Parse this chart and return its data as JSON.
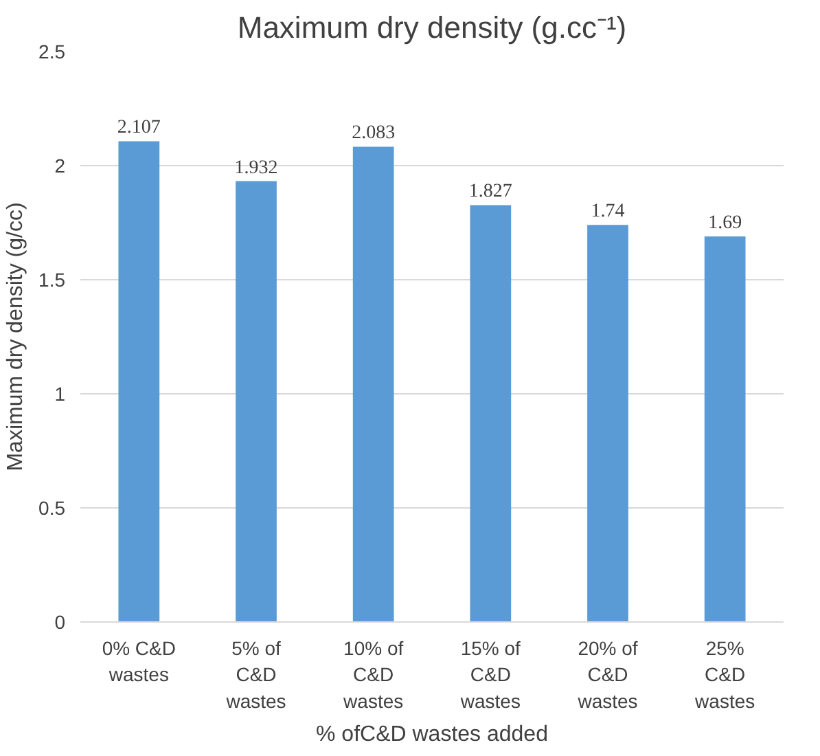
{
  "chart_data": {
    "type": "bar",
    "title": "Maximum dry density (g.cc⁻¹)",
    "xlabel": "% ofC&D wastes added",
    "ylabel": "Maximum dry density (g/cc)",
    "categories": [
      "0% C&D wastes",
      "5% of C&D wastes",
      "10% of C&D wastes",
      "15% of C&D wastes",
      "20% of C&D wastes",
      "25% C&D wastes"
    ],
    "values": [
      2.107,
      1.932,
      2.083,
      1.827,
      1.74,
      1.69
    ],
    "color": "#5b9bd5",
    "ylim": [
      0,
      2.5
    ],
    "yticks": [
      0,
      0.5,
      1,
      1.5,
      2,
      2.5
    ],
    "grid": "y",
    "data_labels": true
  }
}
